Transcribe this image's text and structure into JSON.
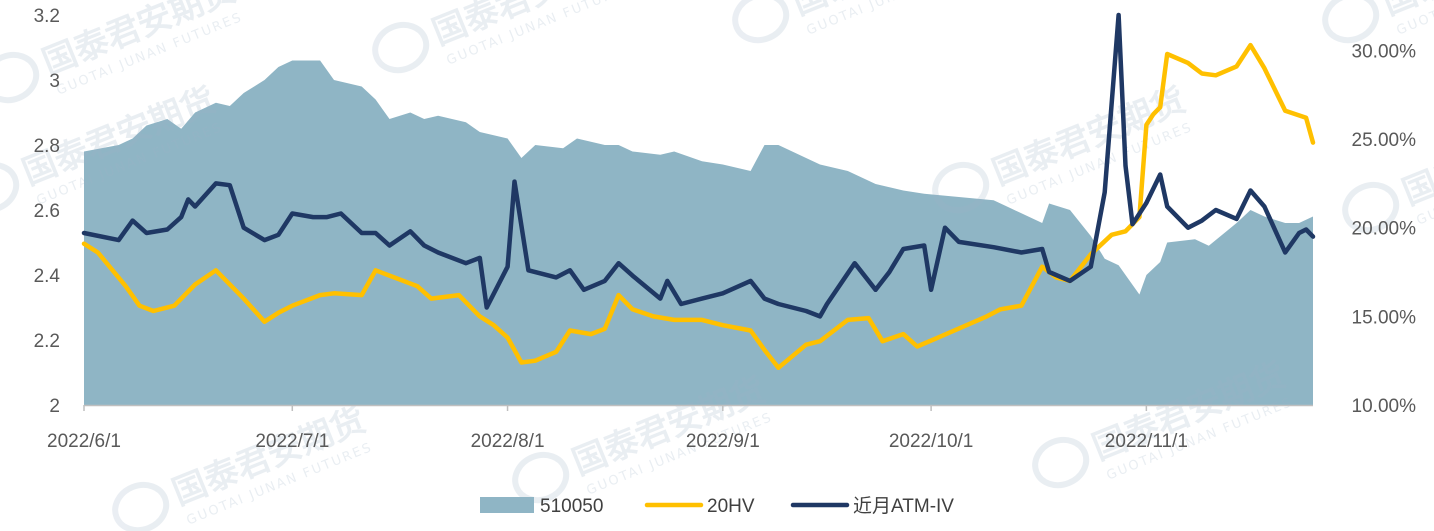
{
  "chart_data": {
    "type": "line",
    "title": "",
    "left_axis": {
      "min": 2,
      "max": 3.2,
      "ticks": [
        2,
        2.2,
        2.4,
        2.6,
        2.8,
        3,
        3.2
      ],
      "tick_labels": [
        "2",
        "2.2",
        "2.4",
        "2.6",
        "2.8",
        "3",
        "3.2"
      ]
    },
    "right_axis": {
      "min": 0.1,
      "max": 0.32,
      "ticks": [
        0.1,
        0.15,
        0.2,
        0.25,
        0.3
      ],
      "tick_labels": [
        "10.00%",
        "15.00%",
        "20.00%",
        "25.00%",
        "30.00%"
      ]
    },
    "x_axis": {
      "start": "2022-06-01",
      "end": "2022-11-25",
      "ticks": [
        "2022-06-01",
        "2022-07-01",
        "2022-08-01",
        "2022-09-01",
        "2022-10-01",
        "2022-11-01"
      ],
      "tick_labels": [
        "2022/6/1",
        "2022/7/1",
        "2022/8/1",
        "2022/9/1",
        "2022/10/1",
        "2022/11/1"
      ]
    },
    "legend_position": "bottom",
    "series": [
      {
        "name": "510050",
        "type": "area",
        "axis": "left",
        "color": "#8FB5C5",
        "points": [
          [
            "2022-06-01",
            2.78
          ],
          [
            "2022-06-06",
            2.8
          ],
          [
            "2022-06-08",
            2.82
          ],
          [
            "2022-06-10",
            2.86
          ],
          [
            "2022-06-13",
            2.88
          ],
          [
            "2022-06-15",
            2.85
          ],
          [
            "2022-06-17",
            2.9
          ],
          [
            "2022-06-20",
            2.93
          ],
          [
            "2022-06-22",
            2.92
          ],
          [
            "2022-06-24",
            2.96
          ],
          [
            "2022-06-27",
            3.0
          ],
          [
            "2022-06-29",
            3.04
          ],
          [
            "2022-07-01",
            3.06
          ],
          [
            "2022-07-05",
            3.06
          ],
          [
            "2022-07-07",
            3.0
          ],
          [
            "2022-07-11",
            2.98
          ],
          [
            "2022-07-13",
            2.94
          ],
          [
            "2022-07-15",
            2.88
          ],
          [
            "2022-07-18",
            2.9
          ],
          [
            "2022-07-20",
            2.88
          ],
          [
            "2022-07-22",
            2.89
          ],
          [
            "2022-07-26",
            2.87
          ],
          [
            "2022-07-28",
            2.84
          ],
          [
            "2022-08-01",
            2.82
          ],
          [
            "2022-08-03",
            2.76
          ],
          [
            "2022-08-05",
            2.8
          ],
          [
            "2022-08-09",
            2.79
          ],
          [
            "2022-08-11",
            2.82
          ],
          [
            "2022-08-15",
            2.8
          ],
          [
            "2022-08-17",
            2.8
          ],
          [
            "2022-08-19",
            2.78
          ],
          [
            "2022-08-23",
            2.77
          ],
          [
            "2022-08-25",
            2.78
          ],
          [
            "2022-08-29",
            2.75
          ],
          [
            "2022-09-01",
            2.74
          ],
          [
            "2022-09-05",
            2.72
          ],
          [
            "2022-09-07",
            2.8
          ],
          [
            "2022-09-09",
            2.8
          ],
          [
            "2022-09-13",
            2.76
          ],
          [
            "2022-09-15",
            2.74
          ],
          [
            "2022-09-19",
            2.72
          ],
          [
            "2022-09-21",
            2.7
          ],
          [
            "2022-09-23",
            2.68
          ],
          [
            "2022-09-27",
            2.66
          ],
          [
            "2022-09-30",
            2.65
          ],
          [
            "2022-10-10",
            2.63
          ],
          [
            "2022-10-12",
            2.61
          ],
          [
            "2022-10-14",
            2.59
          ],
          [
            "2022-10-17",
            2.56
          ],
          [
            "2022-10-18",
            2.62
          ],
          [
            "2022-10-21",
            2.6
          ],
          [
            "2022-10-24",
            2.52
          ],
          [
            "2022-10-26",
            2.45
          ],
          [
            "2022-10-28",
            2.43
          ],
          [
            "2022-10-31",
            2.34
          ],
          [
            "2022-11-01",
            2.4
          ],
          [
            "2022-11-03",
            2.44
          ],
          [
            "2022-11-04",
            2.5
          ],
          [
            "2022-11-08",
            2.51
          ],
          [
            "2022-11-10",
            2.49
          ],
          [
            "2022-11-14",
            2.56
          ],
          [
            "2022-11-16",
            2.6
          ],
          [
            "2022-11-18",
            2.58
          ],
          [
            "2022-11-21",
            2.56
          ],
          [
            "2022-11-23",
            2.56
          ],
          [
            "2022-11-25",
            2.58
          ]
        ]
      },
      {
        "name": "20HV",
        "type": "line",
        "axis": "right",
        "color": "#FFC000",
        "points": [
          [
            "2022-06-01",
            0.191
          ],
          [
            "2022-06-03",
            0.186
          ],
          [
            "2022-06-07",
            0.167
          ],
          [
            "2022-06-09",
            0.156
          ],
          [
            "2022-06-11",
            0.153
          ],
          [
            "2022-06-14",
            0.156
          ],
          [
            "2022-06-17",
            0.168
          ],
          [
            "2022-06-20",
            0.176
          ],
          [
            "2022-06-24",
            0.16
          ],
          [
            "2022-06-27",
            0.147
          ],
          [
            "2022-06-29",
            0.152
          ],
          [
            "2022-07-01",
            0.156
          ],
          [
            "2022-07-05",
            0.162
          ],
          [
            "2022-07-07",
            0.163
          ],
          [
            "2022-07-11",
            0.162
          ],
          [
            "2022-07-13",
            0.176
          ],
          [
            "2022-07-15",
            0.173
          ],
          [
            "2022-07-19",
            0.167
          ],
          [
            "2022-07-21",
            0.16
          ],
          [
            "2022-07-25",
            0.162
          ],
          [
            "2022-07-28",
            0.15
          ],
          [
            "2022-07-30",
            0.145
          ],
          [
            "2022-08-01",
            0.138
          ],
          [
            "2022-08-03",
            0.124
          ],
          [
            "2022-08-05",
            0.125
          ],
          [
            "2022-08-08",
            0.13
          ],
          [
            "2022-08-10",
            0.142
          ],
          [
            "2022-08-13",
            0.14
          ],
          [
            "2022-08-15",
            0.143
          ],
          [
            "2022-08-17",
            0.162
          ],
          [
            "2022-08-19",
            0.154
          ],
          [
            "2022-08-22",
            0.15
          ],
          [
            "2022-08-25",
            0.148
          ],
          [
            "2022-08-29",
            0.148
          ],
          [
            "2022-09-01",
            0.145
          ],
          [
            "2022-09-05",
            0.142
          ],
          [
            "2022-09-07",
            0.131
          ],
          [
            "2022-09-09",
            0.121
          ],
          [
            "2022-09-13",
            0.134
          ],
          [
            "2022-09-15",
            0.136
          ],
          [
            "2022-09-19",
            0.148
          ],
          [
            "2022-09-22",
            0.149
          ],
          [
            "2022-09-24",
            0.136
          ],
          [
            "2022-09-27",
            0.14
          ],
          [
            "2022-09-29",
            0.133
          ],
          [
            "2022-10-02",
            0.138
          ],
          [
            "2022-10-09",
            0.15
          ],
          [
            "2022-10-11",
            0.154
          ],
          [
            "2022-10-14",
            0.156
          ],
          [
            "2022-10-17",
            0.178
          ],
          [
            "2022-10-19",
            0.172
          ],
          [
            "2022-10-21",
            0.17
          ],
          [
            "2022-10-24",
            0.185
          ],
          [
            "2022-10-27",
            0.196
          ],
          [
            "2022-10-29",
            0.198
          ],
          [
            "2022-10-31",
            0.206
          ],
          [
            "2022-11-01",
            0.258
          ],
          [
            "2022-11-02",
            0.264
          ],
          [
            "2022-11-03",
            0.268
          ],
          [
            "2022-11-04",
            0.298
          ],
          [
            "2022-11-07",
            0.293
          ],
          [
            "2022-11-09",
            0.287
          ],
          [
            "2022-11-11",
            0.286
          ],
          [
            "2022-11-14",
            0.291
          ],
          [
            "2022-11-16",
            0.303
          ],
          [
            "2022-11-18",
            0.29
          ],
          [
            "2022-11-21",
            0.266
          ],
          [
            "2022-11-24",
            0.262
          ],
          [
            "2022-11-25",
            0.248
          ]
        ]
      },
      {
        "name": "近月ATM-IV",
        "type": "line",
        "axis": "right",
        "color": "#1F3864",
        "points": [
          [
            "2022-06-01",
            0.197
          ],
          [
            "2022-06-06",
            0.193
          ],
          [
            "2022-06-08",
            0.204
          ],
          [
            "2022-06-10",
            0.197
          ],
          [
            "2022-06-13",
            0.199
          ],
          [
            "2022-06-15",
            0.206
          ],
          [
            "2022-06-16",
            0.216
          ],
          [
            "2022-06-17",
            0.212
          ],
          [
            "2022-06-20",
            0.225
          ],
          [
            "2022-06-22",
            0.224
          ],
          [
            "2022-06-24",
            0.2
          ],
          [
            "2022-06-27",
            0.193
          ],
          [
            "2022-06-29",
            0.196
          ],
          [
            "2022-07-01",
            0.208
          ],
          [
            "2022-07-04",
            0.206
          ],
          [
            "2022-07-06",
            0.206
          ],
          [
            "2022-07-08",
            0.208
          ],
          [
            "2022-07-11",
            0.197
          ],
          [
            "2022-07-13",
            0.197
          ],
          [
            "2022-07-15",
            0.19
          ],
          [
            "2022-07-18",
            0.198
          ],
          [
            "2022-07-20",
            0.19
          ],
          [
            "2022-07-22",
            0.186
          ],
          [
            "2022-07-26",
            0.18
          ],
          [
            "2022-07-28",
            0.183
          ],
          [
            "2022-07-29",
            0.155
          ],
          [
            "2022-08-01",
            0.178
          ],
          [
            "2022-08-02",
            0.226
          ],
          [
            "2022-08-04",
            0.176
          ],
          [
            "2022-08-08",
            0.172
          ],
          [
            "2022-08-10",
            0.176
          ],
          [
            "2022-08-12",
            0.165
          ],
          [
            "2022-08-15",
            0.17
          ],
          [
            "2022-08-17",
            0.18
          ],
          [
            "2022-08-19",
            0.173
          ],
          [
            "2022-08-23",
            0.16
          ],
          [
            "2022-08-24",
            0.17
          ],
          [
            "2022-08-26",
            0.157
          ],
          [
            "2022-08-29",
            0.16
          ],
          [
            "2022-09-01",
            0.163
          ],
          [
            "2022-09-05",
            0.17
          ],
          [
            "2022-09-07",
            0.16
          ],
          [
            "2022-09-09",
            0.157
          ],
          [
            "2022-09-13",
            0.153
          ],
          [
            "2022-09-15",
            0.15
          ],
          [
            "2022-09-16",
            0.157
          ],
          [
            "2022-09-20",
            0.18
          ],
          [
            "2022-09-23",
            0.165
          ],
          [
            "2022-09-25",
            0.175
          ],
          [
            "2022-09-27",
            0.188
          ],
          [
            "2022-09-30",
            0.19
          ],
          [
            "2022-10-01",
            0.165
          ],
          [
            "2022-10-03",
            0.2
          ],
          [
            "2022-10-05",
            0.192
          ],
          [
            "2022-10-10",
            0.189
          ],
          [
            "2022-10-14",
            0.186
          ],
          [
            "2022-10-17",
            0.188
          ],
          [
            "2022-10-18",
            0.175
          ],
          [
            "2022-10-21",
            0.17
          ],
          [
            "2022-10-24",
            0.178
          ],
          [
            "2022-10-26",
            0.22
          ],
          [
            "2022-10-28",
            0.32
          ],
          [
            "2022-10-29",
            0.235
          ],
          [
            "2022-10-30",
            0.202
          ],
          [
            "2022-11-01",
            0.214
          ],
          [
            "2022-11-03",
            0.23
          ],
          [
            "2022-11-04",
            0.212
          ],
          [
            "2022-11-07",
            0.2
          ],
          [
            "2022-11-09",
            0.204
          ],
          [
            "2022-11-11",
            0.21
          ],
          [
            "2022-11-14",
            0.205
          ],
          [
            "2022-11-16",
            0.221
          ],
          [
            "2022-11-18",
            0.212
          ],
          [
            "2022-11-21",
            0.186
          ],
          [
            "2022-11-23",
            0.197
          ],
          [
            "2022-11-24",
            0.199
          ],
          [
            "2022-11-25",
            0.195
          ]
        ]
      }
    ]
  },
  "watermark": {
    "text": "国泰君安期货",
    "subtext": "GUOTAI JUNAN FUTURES"
  }
}
